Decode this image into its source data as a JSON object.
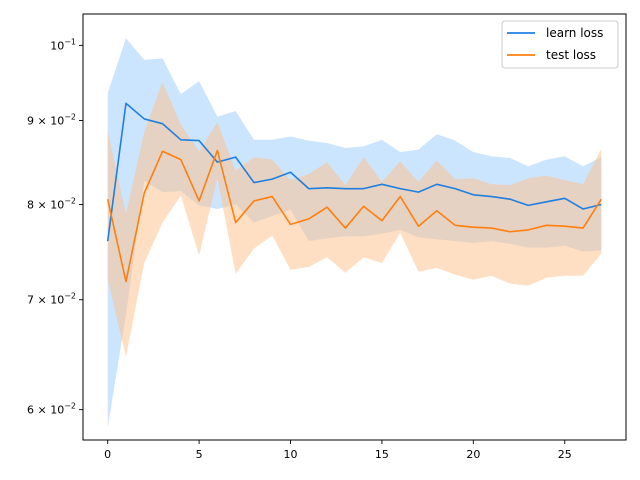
{
  "chart_data": {
    "type": "line",
    "title": "",
    "xlabel": "",
    "ylabel": "",
    "xlim": [
      -1.35,
      28.35
    ],
    "ylim": [
      0.0575,
      0.1045
    ],
    "yscale": "log",
    "grid": false,
    "legend_position": "top-right",
    "x": [
      0,
      1,
      2,
      3,
      4,
      5,
      6,
      7,
      8,
      9,
      10,
      11,
      12,
      13,
      14,
      15,
      16,
      17,
      18,
      19,
      20,
      21,
      22,
      23,
      24,
      25,
      26,
      27
    ],
    "xticks": [
      0,
      5,
      10,
      15,
      20,
      25
    ],
    "xtick_labels": [
      "0",
      "5",
      "10",
      "15",
      "20",
      "25"
    ],
    "yticks": [
      {
        "value": 0.06,
        "mantissa": "6",
        "base": "10",
        "exp": "−2"
      },
      {
        "value": 0.07,
        "mantissa": "7",
        "base": "10",
        "exp": "−2"
      },
      {
        "value": 0.08,
        "mantissa": "8",
        "base": "10",
        "exp": "−2"
      },
      {
        "value": 0.09,
        "mantissa": "9",
        "base": "10",
        "exp": "−2"
      },
      {
        "value": 0.1,
        "mantissa": "",
        "base": "10",
        "exp": "−1"
      }
    ],
    "series": [
      {
        "name": "learn loss",
        "color": "#1f77b4",
        "line_color": "#1f7fe0",
        "band_color": "#99ccff",
        "values": [
          0.076,
          0.0922,
          0.0902,
          0.0896,
          0.0876,
          0.0875,
          0.0849,
          0.0855,
          0.0825,
          0.0829,
          0.0837,
          0.0818,
          0.0819,
          0.0818,
          0.0818,
          0.0823,
          0.0818,
          0.0814,
          0.0823,
          0.0818,
          0.0811,
          0.0809,
          0.0806,
          0.0799,
          0.0803,
          0.0807,
          0.0795,
          0.08
        ],
        "lower": [
          0.0585,
          0.0685,
          0.0827,
          0.0814,
          0.0815,
          0.0799,
          0.0795,
          0.08,
          0.078,
          0.0787,
          0.0794,
          0.076,
          0.0763,
          0.0765,
          0.0765,
          0.0768,
          0.0772,
          0.0764,
          0.0762,
          0.076,
          0.0758,
          0.076,
          0.0757,
          0.0753,
          0.0753,
          0.0755,
          0.0749,
          0.075
        ],
        "upper": [
          0.0935,
          0.101,
          0.098,
          0.0982,
          0.0934,
          0.0951,
          0.0905,
          0.0912,
          0.0876,
          0.0876,
          0.088,
          0.0875,
          0.0872,
          0.0866,
          0.0868,
          0.0876,
          0.0861,
          0.0864,
          0.0883,
          0.0875,
          0.0861,
          0.0856,
          0.0854,
          0.0844,
          0.0852,
          0.0856,
          0.0844,
          0.0855
        ]
      },
      {
        "name": "test loss",
        "color": "#ff7f0e",
        "line_color": "#ff7f0e",
        "band_color": "#ffbf87",
        "values": [
          0.0806,
          0.0718,
          0.0813,
          0.0862,
          0.0852,
          0.0804,
          0.0863,
          0.078,
          0.0804,
          0.0809,
          0.0778,
          0.0784,
          0.0797,
          0.0774,
          0.0798,
          0.0782,
          0.0809,
          0.0776,
          0.0793,
          0.0777,
          0.0775,
          0.0774,
          0.077,
          0.0772,
          0.0777,
          0.0776,
          0.0774,
          0.0806
        ],
        "lower": [
          0.072,
          0.0646,
          0.0737,
          0.078,
          0.081,
          0.0745,
          0.083,
          0.0726,
          0.0752,
          0.0766,
          0.073,
          0.0733,
          0.0743,
          0.0727,
          0.0743,
          0.0737,
          0.0769,
          0.0728,
          0.0732,
          0.0725,
          0.072,
          0.0724,
          0.0716,
          0.0714,
          0.0722,
          0.0724,
          0.0724,
          0.0747
        ],
        "upper": [
          0.0887,
          0.079,
          0.0886,
          0.095,
          0.0895,
          0.0862,
          0.0898,
          0.0839,
          0.0855,
          0.0852,
          0.0828,
          0.0835,
          0.0849,
          0.0822,
          0.0855,
          0.0826,
          0.085,
          0.0826,
          0.0851,
          0.0829,
          0.083,
          0.0823,
          0.0822,
          0.083,
          0.0833,
          0.0828,
          0.0823,
          0.0865
        ]
      }
    ]
  }
}
